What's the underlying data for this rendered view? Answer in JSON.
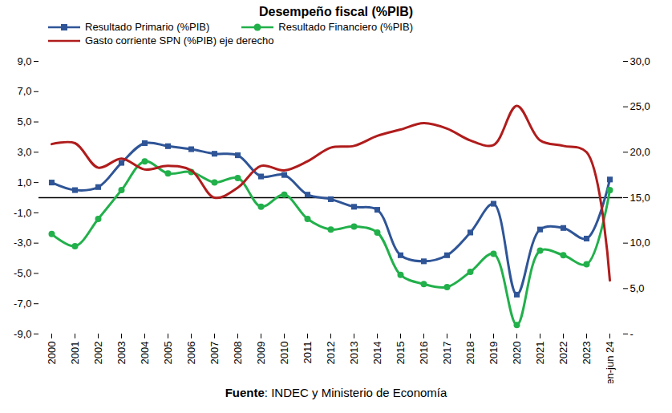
{
  "chart_data": {
    "type": "line",
    "title": "Desempeño fiscal (%PIB)",
    "categories": [
      "2000",
      "2001",
      "2002",
      "2003",
      "2004",
      "2005",
      "2006",
      "2007",
      "2008",
      "2009",
      "2010",
      "2011",
      "2012",
      "2013",
      "2014",
      "2015",
      "2016",
      "2017",
      "2018",
      "2019",
      "2020",
      "2021",
      "2022",
      "2023",
      "en-jun 24"
    ],
    "series": [
      {
        "name": "Resultado Primario (%PIB)",
        "color": "#2f5597",
        "marker": "square",
        "values": [
          1.0,
          0.5,
          0.7,
          2.3,
          3.6,
          3.4,
          3.2,
          2.9,
          2.8,
          1.4,
          1.5,
          0.2,
          -0.1,
          -0.6,
          -0.8,
          -3.8,
          -4.2,
          -3.8,
          -2.3,
          -0.4,
          -6.4,
          -2.1,
          -2.0,
          -2.7,
          1.2
        ]
      },
      {
        "name": "Resultado Financiero (%PIB)",
        "color": "#22b04b",
        "marker": "circle",
        "values": [
          -2.4,
          -3.2,
          -1.4,
          0.5,
          2.4,
          1.6,
          1.7,
          1.0,
          1.3,
          -0.6,
          0.2,
          -1.4,
          -2.1,
          -1.9,
          -2.3,
          -5.1,
          -5.7,
          -5.9,
          -4.9,
          -3.7,
          -8.4,
          -3.5,
          -3.8,
          -4.4,
          0.5
        ]
      },
      {
        "name": "Gasto corriente SPN (%PIB) eje derecho",
        "color": "#b01c1c",
        "axis": "y2",
        "values": [
          20.9,
          21.0,
          18.3,
          19.3,
          18.1,
          18.5,
          18.0,
          15.0,
          16.1,
          18.5,
          18.0,
          19.0,
          20.5,
          20.7,
          21.8,
          22.5,
          23.2,
          22.6,
          21.3,
          20.8,
          25.1,
          21.3,
          20.7,
          20.0,
          5.9
        ]
      }
    ],
    "ylim": [
      -9,
      9
    ],
    "yticks": [
      {
        "value": -9,
        "label": "-9,0"
      },
      {
        "value": -7,
        "label": "-7,0"
      },
      {
        "value": -5,
        "label": "-5,0"
      },
      {
        "value": -3,
        "label": "-3,0"
      },
      {
        "value": -1,
        "label": "-1,0"
      },
      {
        "value": 1,
        "label": "1,0"
      },
      {
        "value": 3,
        "label": "3,0"
      },
      {
        "value": 5,
        "label": "5,0"
      },
      {
        "value": 7,
        "label": "7,0"
      },
      {
        "value": 9,
        "label": "9,0"
      }
    ],
    "y2lim": [
      0,
      30
    ],
    "y2ticks": [
      {
        "value": 0,
        "label": "-"
      },
      {
        "value": 5,
        "label": "5,0"
      },
      {
        "value": 10,
        "label": "10,0"
      },
      {
        "value": 15,
        "label": "15,0"
      },
      {
        "value": 20,
        "label": "20,0"
      },
      {
        "value": 25,
        "label": "25,0"
      },
      {
        "value": 30,
        "label": "30,0"
      }
    ],
    "grid": false,
    "legend": "top",
    "caption": "Fuente: INDEC y Ministerio de Economía"
  }
}
